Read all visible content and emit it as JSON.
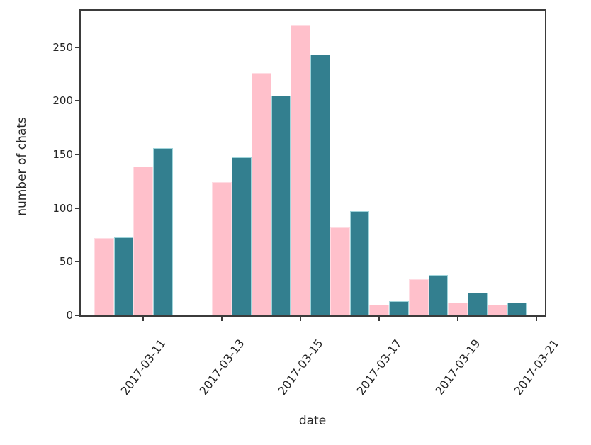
{
  "figure": {
    "background": "#ffffff",
    "spine_color": "#3b3b3b",
    "text_color": "#262626"
  },
  "chart_data": {
    "type": "bar",
    "title": "",
    "xlabel": "date",
    "ylabel": "number of chats",
    "grid": false,
    "legend": "none",
    "yticks": [
      0,
      50,
      100,
      150,
      200,
      250
    ],
    "ylim": [
      0,
      284
    ],
    "xtick_labels": [
      "2017-03-11",
      "2017-03-13",
      "2017-03-15",
      "2017-03-17",
      "2017-03-19",
      "2017-03-21"
    ],
    "categories": [
      "2017-03-10",
      "2017-03-11",
      "2017-03-13",
      "2017-03-14",
      "2017-03-15",
      "2017-03-16",
      "2017-03-17",
      "2017-03-18",
      "2017-03-19",
      "2017-03-20"
    ],
    "series": [
      {
        "name": "pink",
        "color": "#ffc0cb",
        "edge_color": "#ffdce3",
        "values": [
          72,
          139,
          124,
          226,
          271,
          82,
          10,
          34,
          12,
          10
        ]
      },
      {
        "name": "teal",
        "color": "#337f8f",
        "edge_color": "#9fd4da",
        "values": [
          73,
          156,
          147,
          205,
          243,
          97,
          13,
          38,
          21,
          12
        ]
      }
    ],
    "notes": "grouped bars per date; no bars on 2017-03-12 and 2017-03-21"
  }
}
